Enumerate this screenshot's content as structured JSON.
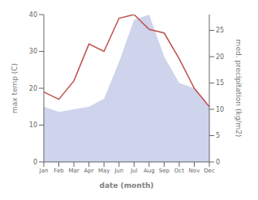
{
  "chart_data": {
    "type": "line",
    "categories": [
      "Jan",
      "Feb",
      "Mar",
      "Apr",
      "May",
      "Jun",
      "Jul",
      "Aug",
      "Sep",
      "Oct",
      "Nov",
      "Dec"
    ],
    "series": [
      {
        "type": "area",
        "axis": "y2",
        "color": "#c5cce8",
        "values": [
          10.5,
          9.5,
          10,
          10.5,
          12,
          19,
          27,
          28,
          20,
          15,
          14,
          10.5
        ]
      },
      {
        "type": "line",
        "axis": "y",
        "color": "#c0504d",
        "values": [
          19,
          17,
          22,
          32,
          30,
          39,
          40,
          36,
          35,
          28,
          20,
          15
        ]
      }
    ],
    "ylim": [
      0,
      40
    ],
    "yticks": [
      0,
      10,
      20,
      30,
      40
    ],
    "y2lim": [
      0,
      28
    ],
    "y2ticks": [
      0,
      5,
      10,
      15,
      20,
      25
    ],
    "xlabel": "date (month)",
    "ylabel": "max temp (C)",
    "y2label": "med. precipitation (kg/m2)",
    "grid": false
  }
}
